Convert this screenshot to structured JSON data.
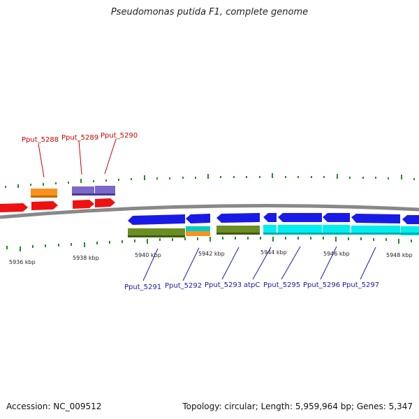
{
  "title": "Pseudomonas putida F1, complete genome",
  "footer": {
    "accession": "Accession: NC_009512",
    "summary": "Topology: circular; Length: 5,959,964 bp; Genes: 5,347"
  },
  "axis_labels": [
    "5936 kbp",
    "5938 kbp",
    "5940 kbp",
    "5942 kbp",
    "5944 kbp",
    "5946 kbp",
    "5948 kbp"
  ],
  "top_gene_labels": [
    "Pput_5288",
    "Pput_5289",
    "Pput_5290"
  ],
  "bottom_gene_labels": [
    "Pput_5291",
    "Pput_5292",
    "Pput_5293",
    "atpC",
    "Pput_5295",
    "Pput_5296",
    "Pput_5297"
  ],
  "colors": {
    "red": "#ee1111",
    "orange": "#f7931e",
    "purple": "#7b68c8",
    "blue": "#1a1ae6",
    "olive": "#6b8e23",
    "cyan": "#00eeee",
    "tick": "#228b22",
    "backbone": "#888888"
  }
}
